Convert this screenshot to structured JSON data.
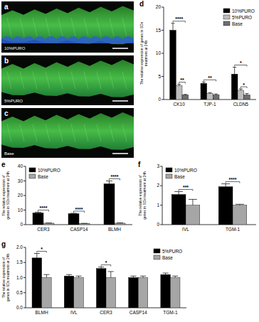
{
  "panels": [
    {
      "label": "a",
      "caption": "10%PURO"
    },
    {
      "label": "b",
      "caption": "5%PURO"
    },
    {
      "label": "c",
      "caption": "Base"
    }
  ],
  "chart_data": [
    {
      "type": "bar",
      "title": "d",
      "y_label": "The relative expression of genes in SDs treatment at 24h",
      "categories": [
        "CK10",
        "TJP-1",
        "CLDN5"
      ],
      "series": [
        {
          "name": "10%PURO",
          "color": "#000000",
          "values": [
            15,
            3.5,
            5.5
          ],
          "errors": [
            1.5,
            0.3,
            1.5
          ]
        },
        {
          "name": "5%PURO",
          "color": "#bdbdbd",
          "values": [
            3,
            1.3,
            2
          ],
          "errors": [
            0.3,
            0.2,
            0.3
          ]
        },
        {
          "name": "Base",
          "color": "#6e6e6e",
          "values": [
            1,
            1,
            1
          ],
          "errors": [
            0.1,
            0.2,
            0.3
          ]
        }
      ],
      "ylim": [
        0,
        20
      ],
      "yticks": [
        0,
        5,
        10,
        15,
        20
      ],
      "legend": "upper right",
      "annotations": [
        {
          "text": "****",
          "category": 0,
          "between": [
            0,
            2
          ]
        },
        {
          "text": "**",
          "category": 0,
          "between": [
            1,
            2
          ]
        },
        {
          "text": "**",
          "category": 1,
          "between": [
            0,
            2
          ]
        },
        {
          "text": "*",
          "category": 2,
          "between": [
            0,
            2
          ]
        },
        {
          "text": "*",
          "category": 2,
          "between": [
            1,
            2
          ]
        }
      ]
    },
    {
      "type": "bar",
      "title": "e",
      "y_label": "The relative expression of genes in SDs treatment at 24h",
      "categories": [
        "CER3",
        "CASP14",
        "BLMH"
      ],
      "series": [
        {
          "name": "10%PURO",
          "color": "#000000",
          "values": [
            8,
            7.5,
            28
          ],
          "errors": [
            0.5,
            0.3,
            2
          ]
        },
        {
          "name": "Base",
          "color": "#a6a6a6",
          "values": [
            1,
            0.8,
            1
          ],
          "errors": [
            0.1,
            0.1,
            0.2
          ]
        }
      ],
      "ylim": [
        0,
        40
      ],
      "yticks": [
        0,
        10,
        20,
        30,
        40
      ],
      "legend": "upper left",
      "annotations": [
        {
          "text": "****",
          "category": 0,
          "between": [
            0,
            1
          ]
        },
        {
          "text": "****",
          "category": 1,
          "between": [
            0,
            1
          ]
        },
        {
          "text": "****",
          "category": 2,
          "between": [
            0,
            1
          ]
        }
      ]
    },
    {
      "type": "bar",
      "title": "f",
      "y_label": "The relative expression of genes in SDs treatment at 24h",
      "categories": [
        "IVL",
        "TGM-1"
      ],
      "series": [
        {
          "name": "10%PURO",
          "color": "#000000",
          "values": [
            1.55,
            1.95
          ],
          "errors": [
            0.15,
            0.15
          ]
        },
        {
          "name": "Base",
          "color": "#a6a6a6",
          "values": [
            1.0,
            1.0
          ],
          "errors": [
            0.3,
            0.05
          ]
        }
      ],
      "ylim": [
        0,
        3
      ],
      "yticks": [
        0,
        1,
        2,
        3
      ],
      "legend": "upper left",
      "annotations": [
        {
          "text": "***",
          "category": 0,
          "between": [
            0,
            1
          ]
        },
        {
          "text": "****",
          "category": 1,
          "between": [
            0,
            1
          ]
        }
      ]
    },
    {
      "type": "bar",
      "title": "g",
      "y_label": "The relative expression of genes in SDs treatment at 24h",
      "categories": [
        "BLMH",
        "IVL",
        "CER3",
        "CASP14",
        "TGM-1"
      ],
      "series": [
        {
          "name": "5%PURO",
          "color": "#000000",
          "values": [
            1.65,
            1.05,
            1.3,
            1.0,
            1.1
          ],
          "errors": [
            0.15,
            0.05,
            0.05,
            0.05,
            0.05
          ]
        },
        {
          "name": "Base",
          "color": "#a6a6a6",
          "values": [
            1.0,
            1.0,
            1.0,
            1.0,
            1.0
          ],
          "errors": [
            0.1,
            0.05,
            0.2,
            0.05,
            0.05
          ]
        }
      ],
      "ylim": [
        0,
        2
      ],
      "yticks": [
        {
          "value": 0,
          "label": "0.0"
        },
        0.5,
        {
          "value": 1,
          "label": "1.0"
        },
        1.5,
        {
          "value": 2,
          "label": "2.0"
        }
      ],
      "legend": "upper right",
      "annotations": [
        {
          "text": "*",
          "category": 0,
          "between": [
            0,
            1
          ]
        },
        {
          "text": "*",
          "category": 2,
          "between": [
            0,
            1
          ]
        }
      ]
    }
  ]
}
